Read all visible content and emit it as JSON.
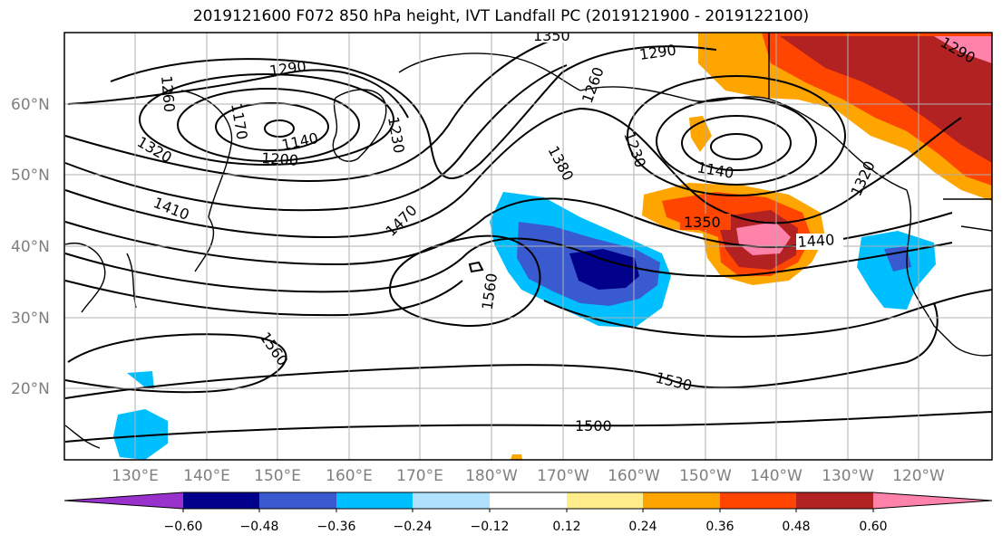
{
  "title": "2019121600 F072 850 hPa height, IVT Landfall PC (2019121900 - 2019122100)",
  "map": {
    "lat_labels": [
      "60°N",
      "50°N",
      "40°N",
      "30°N",
      "20°N"
    ],
    "lon_labels": [
      "130°E",
      "140°E",
      "150°E",
      "160°E",
      "170°E",
      "180°W",
      "170°W",
      "160°W",
      "150°W",
      "140°W",
      "130°W",
      "120°W"
    ],
    "contour_labels": [
      "1350",
      "1290",
      "1260",
      "1170",
      "1140",
      "1200",
      "1230",
      "1320",
      "1410",
      "1470",
      "1380",
      "1260",
      "1230",
      "1290",
      "1140",
      "1350",
      "1440",
      "1560",
      "1560",
      "1530",
      "1500",
      "1290",
      "1320"
    ],
    "colors": {
      "contour": "#000000",
      "coast": "#000000",
      "grid": "#b0b0b0"
    }
  },
  "colorbar": {
    "colors": [
      "#9932cc",
      "#00008b",
      "#3a5bd0",
      "#00bfff",
      "#b0e2ff",
      "#ffffff",
      "#ffec8b",
      "#ffa500",
      "#ff4500",
      "#b22222",
      "#ff82ab"
    ],
    "tick_labels": [
      "−0.60",
      "−0.48",
      "−0.36",
      "−0.24",
      "−0.12",
      "0.12",
      "0.24",
      "0.36",
      "0.48",
      "0.60"
    ]
  }
}
